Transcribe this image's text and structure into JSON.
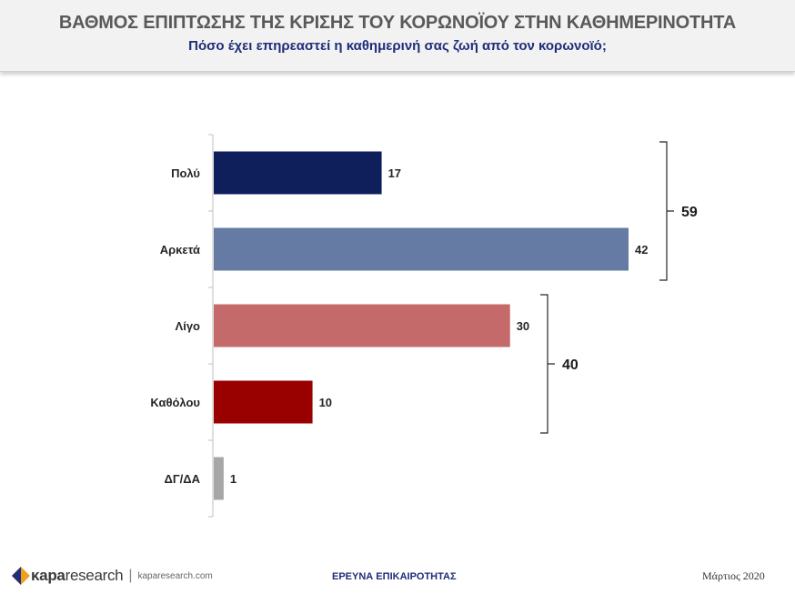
{
  "header": {
    "title": "ΒΑΘΜΟΣ ΕΠΙΠΤΩΣΗΣ ΤΗΣ ΚΡΙΣΗΣ ΤΟΥ ΚΟΡΩΝΟΪΟΥ ΣΤΗΝ ΚΑΘΗΜΕΡΙΝΟΤΗΤΑ",
    "subtitle": "Πόσο έχει επηρεαστεί η καθημερινή σας ζωή από τον κορωνοϊό;"
  },
  "chart_data": {
    "type": "bar",
    "orientation": "horizontal",
    "categories": [
      "Πολύ",
      "Αρκετά",
      "Λίγο",
      "Καθόλου",
      "ΔΓ/ΔΑ"
    ],
    "values": [
      17,
      42,
      30,
      10,
      1
    ],
    "colors": [
      "#0f1f5c",
      "#667ba3",
      "#c56a6b",
      "#990000",
      "#a6a6a6"
    ],
    "groups": [
      {
        "members": [
          "Πολύ",
          "Αρκετά"
        ],
        "total": 59
      },
      {
        "members": [
          "Λίγο",
          "Καθόλου"
        ],
        "total": 40
      }
    ],
    "xlim": [
      0,
      42
    ]
  },
  "footer": {
    "logo_brand": "κapa",
    "logo_research": "research",
    "logo_url": "kaparesearch.com",
    "center_text": "ΕΡΕΥΝΑ ΕΠΙΚΑΙΡΟΤΗΤΑΣ",
    "date": "Μάρτιος 2020"
  }
}
